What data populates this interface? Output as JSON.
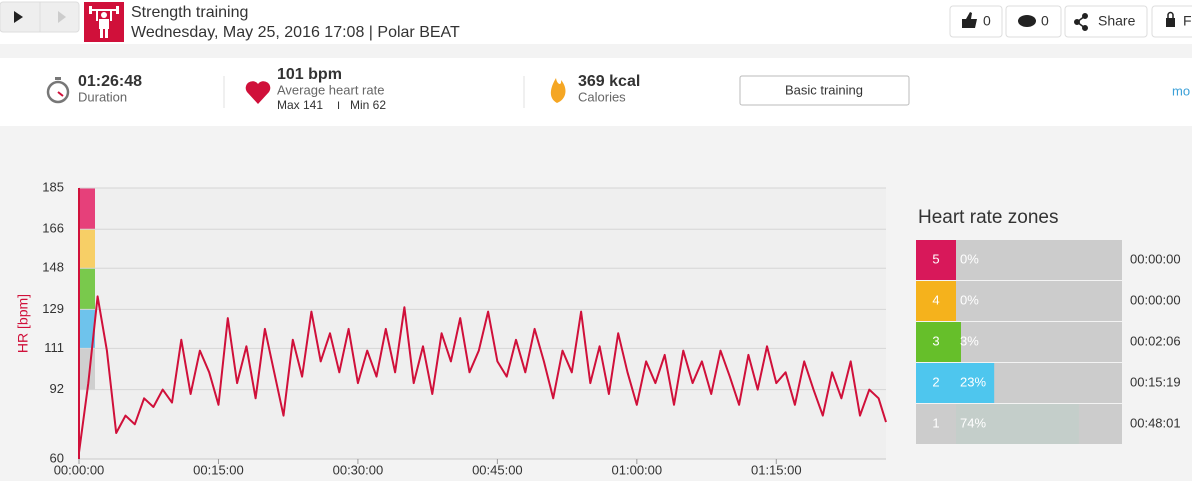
{
  "header": {
    "title": "Strength training",
    "subtitle": "Wednesday, May 25, 2016 17:08 | Polar BEAT"
  },
  "actions": {
    "likes": "0",
    "comments": "0",
    "share": "Share",
    "extra": "F"
  },
  "summary": {
    "duration": {
      "value": "01:26:48",
      "label": "Duration"
    },
    "heart_rate": {
      "value": "101 bpm",
      "label": "Average heart rate",
      "max": "Max 141",
      "separator": "I",
      "min": "Min 62"
    },
    "calories": {
      "value": "369 kcal",
      "label": "Calories"
    },
    "training": "Basic training",
    "more": "mo"
  },
  "chart_data": {
    "type": "line",
    "ylabel": "HR [bpm]",
    "color": "#d0103a",
    "zone_band_colors": [
      "#cfcfcf",
      "#6ec3ec",
      "#79c94c",
      "#f7cf66",
      "#e6407a"
    ],
    "xlim": [
      0,
      86.8
    ],
    "ylim": [
      60,
      185
    ],
    "xticks": [
      {
        "value": 0,
        "label": "00:00:00"
      },
      {
        "value": 15,
        "label": "00:15:00"
      },
      {
        "value": 30,
        "label": "00:30:00"
      },
      {
        "value": 45,
        "label": "00:45:00"
      },
      {
        "value": 60,
        "label": "01:00:00"
      },
      {
        "value": 75,
        "label": "01:15:00"
      }
    ],
    "yticks": [
      60,
      92,
      111,
      129,
      148,
      166,
      185
    ],
    "grid": true,
    "x": [
      0,
      1,
      2,
      3,
      4,
      5,
      6,
      7,
      8,
      9,
      10,
      11,
      12,
      13,
      14,
      15,
      16,
      17,
      18,
      19,
      20,
      21,
      22,
      23,
      24,
      25,
      26,
      27,
      28,
      29,
      30,
      31,
      32,
      33,
      34,
      35,
      36,
      37,
      38,
      39,
      40,
      41,
      42,
      43,
      44,
      45,
      46,
      47,
      48,
      49,
      50,
      51,
      52,
      53,
      54,
      55,
      56,
      57,
      58,
      59,
      60,
      61,
      62,
      63,
      64,
      65,
      66,
      67,
      68,
      69,
      70,
      71,
      72,
      73,
      74,
      75,
      76,
      77,
      78,
      79,
      80,
      81,
      82,
      83,
      84,
      85,
      86,
      86.8
    ],
    "values": [
      63,
      95,
      135,
      110,
      72,
      80,
      76,
      88,
      84,
      92,
      86,
      115,
      90,
      110,
      100,
      85,
      125,
      95,
      112,
      88,
      120,
      100,
      80,
      115,
      98,
      128,
      105,
      118,
      100,
      120,
      95,
      110,
      98,
      120,
      100,
      130,
      95,
      112,
      90,
      118,
      105,
      125,
      100,
      110,
      128,
      105,
      98,
      115,
      100,
      120,
      105,
      88,
      110,
      100,
      128,
      95,
      112,
      90,
      118,
      100,
      85,
      105,
      95,
      108,
      85,
      110,
      95,
      105,
      90,
      110,
      98,
      85,
      108,
      92,
      112,
      95,
      100,
      85,
      105,
      92,
      80,
      100,
      88,
      105,
      80,
      92,
      88,
      77
    ]
  },
  "zones": {
    "title": "Heart rate zones",
    "items": [
      {
        "zone": 5,
        "percent": 0,
        "percent_label": "0%",
        "duration": "00:00:00",
        "color": "#d8185a",
        "bar_color": "#d8185a"
      },
      {
        "zone": 4,
        "percent": 0,
        "percent_label": "0%",
        "duration": "00:00:00",
        "color": "#f5b21c",
        "bar_color": "#f5b21c"
      },
      {
        "zone": 3,
        "percent": 3,
        "percent_label": "3%",
        "duration": "00:02:06",
        "color": "#66bf2a",
        "bar_color": "#66bf2a"
      },
      {
        "zone": 2,
        "percent": 23,
        "percent_label": "23%",
        "duration": "00:15:19",
        "color": "#4ec6ee",
        "bar_color": "#4ec6ee"
      },
      {
        "zone": 1,
        "percent": 74,
        "percent_label": "74%",
        "duration": "00:48:01",
        "color": "#cccccc",
        "bar_color": "#c4ceca"
      }
    ]
  }
}
